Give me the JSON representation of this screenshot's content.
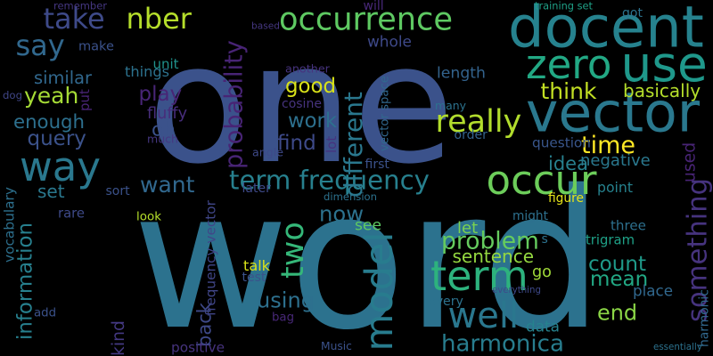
{
  "background": "#000000",
  "palette": {
    "dark_purple": "#46327e",
    "blue": "#365c8d",
    "teal": "#277f8e",
    "green_teal": "#1fa187",
    "green": "#4ac16d",
    "yellow_green": "#a0da39"
  },
  "words": [
    {
      "id": "one",
      "text": "one",
      "color": "#3b528b",
      "vertical": false
    },
    {
      "id": "word",
      "text": "word",
      "color": "#2c728e",
      "vertical": false
    },
    {
      "id": "docent",
      "text": "docent",
      "color": "#26828e",
      "vertical": false
    },
    {
      "id": "vector",
      "text": "vector",
      "color": "#2a788e",
      "vertical": false
    },
    {
      "id": "use",
      "text": "use",
      "color": "#1f988b",
      "vertical": false
    },
    {
      "id": "zero",
      "text": "zero",
      "color": "#22a884",
      "vertical": false
    },
    {
      "id": "occurrence",
      "text": "occurrence",
      "color": "#5ec962",
      "vertical": false
    },
    {
      "id": "take",
      "text": "take",
      "color": "#3e4a89",
      "vertical": false
    },
    {
      "id": "nber",
      "text": "nber",
      "color": "#b5de2b",
      "vertical": false
    },
    {
      "id": "say",
      "text": "say",
      "color": "#31688e",
      "vertical": false
    },
    {
      "id": "way",
      "text": "way",
      "color": "#2a788e",
      "vertical": false
    },
    {
      "id": "occur",
      "text": "occur",
      "color": "#6ccd5a",
      "vertical": false
    },
    {
      "id": "two",
      "text": "two",
      "color": "#35b779",
      "vertical": true
    },
    {
      "id": "term-frequency",
      "text": "term frequency",
      "color": "#27808e",
      "vertical": false
    },
    {
      "id": "term",
      "text": "term",
      "color": "#2db27d",
      "vertical": false
    },
    {
      "id": "model",
      "text": "model",
      "color": "#287c8e",
      "vertical": true
    },
    {
      "id": "well",
      "text": "well",
      "color": "#2a778e",
      "vertical": false
    },
    {
      "id": "harmonica",
      "text": "harmonica",
      "color": "#287d8e",
      "vertical": false
    },
    {
      "id": "probability",
      "text": "probability",
      "color": "#482475",
      "vertical": true
    },
    {
      "id": "yeah",
      "text": "yeah",
      "color": "#a5db36",
      "vertical": false
    },
    {
      "id": "good",
      "text": "good",
      "color": "#d8e219",
      "vertical": false
    },
    {
      "id": "really",
      "text": "really",
      "color": "#b2dd2d",
      "vertical": false
    },
    {
      "id": "time",
      "text": "time",
      "color": "#fde725",
      "vertical": false
    },
    {
      "id": "think",
      "text": "think",
      "color": "#c2df23",
      "vertical": false
    },
    {
      "id": "want",
      "text": "want",
      "color": "#31688e",
      "vertical": false
    },
    {
      "id": "problem",
      "text": "problem",
      "color": "#65cb5e",
      "vertical": false
    },
    {
      "id": "sentence",
      "text": "sentence",
      "color": "#95d840",
      "vertical": false
    },
    {
      "id": "count",
      "text": "count",
      "color": "#1f9a8a",
      "vertical": false
    },
    {
      "id": "mean",
      "text": "mean",
      "color": "#22a884",
      "vertical": false
    },
    {
      "id": "end",
      "text": "end",
      "color": "#8bd646",
      "vertical": false
    },
    {
      "id": "something",
      "text": "something",
      "color": "#46337e",
      "vertical": true
    },
    {
      "id": "information",
      "text": "information",
      "color": "#27808e",
      "vertical": true
    },
    {
      "id": "kind",
      "text": "kind",
      "color": "#443983",
      "vertical": true
    },
    {
      "id": "back",
      "text": "back",
      "color": "#3e4989",
      "vertical": true
    },
    {
      "id": "using",
      "text": "using",
      "color": "#2d708e",
      "vertical": false
    },
    {
      "id": "now",
      "text": "now",
      "color": "#2c728e",
      "vertical": false
    },
    {
      "id": "see",
      "text": "see",
      "color": "#5ec962",
      "vertical": false
    },
    {
      "id": "similar",
      "text": "similar",
      "color": "#31688e",
      "vertical": false
    },
    {
      "id": "enough",
      "text": "enough",
      "color": "#2d708e",
      "vertical": false
    },
    {
      "id": "query",
      "text": "query",
      "color": "#3b528b",
      "vertical": false
    },
    {
      "id": "set",
      "text": "set",
      "color": "#2a788e",
      "vertical": false
    },
    {
      "id": "play",
      "text": "play",
      "color": "#482576",
      "vertical": false
    },
    {
      "id": "oh",
      "text": "oh",
      "color": "#3b528b",
      "vertical": false
    },
    {
      "id": "work",
      "text": "work",
      "color": "#2d708e",
      "vertical": false
    },
    {
      "id": "find",
      "text": "find",
      "color": "#3e4a89",
      "vertical": false
    },
    {
      "id": "different",
      "text": "different",
      "color": "#2a788e",
      "vertical": true
    },
    {
      "id": "idea",
      "text": "idea",
      "color": "#27808e",
      "vertical": false
    },
    {
      "id": "used",
      "text": "used",
      "color": "#482475",
      "vertical": true
    },
    {
      "id": "basically",
      "text": "basically",
      "color": "#b5de2b",
      "vertical": false
    },
    {
      "id": "negative",
      "text": "negative",
      "color": "#2a788e",
      "vertical": false
    },
    {
      "id": "question",
      "text": "question",
      "color": "#39568c",
      "vertical": false
    },
    {
      "id": "whole",
      "text": "whole",
      "color": "#3e4989",
      "vertical": false
    },
    {
      "id": "length",
      "text": "length",
      "color": "#33638d",
      "vertical": false
    },
    {
      "id": "things",
      "text": "things",
      "color": "#2c728e",
      "vertical": false
    },
    {
      "id": "make",
      "text": "make",
      "color": "#3b528b",
      "vertical": false
    },
    {
      "id": "unit",
      "text": "unit",
      "color": "#20928c",
      "vertical": false
    },
    {
      "id": "put",
      "text": "put",
      "color": "#482475",
      "vertical": true
    },
    {
      "id": "fluffy",
      "text": "fluffy",
      "color": "#472d7b",
      "vertical": false
    },
    {
      "id": "much",
      "text": "much",
      "color": "#453781",
      "vertical": false
    },
    {
      "id": "cosine",
      "text": "cosine",
      "color": "#46337e",
      "vertical": false
    },
    {
      "id": "lot",
      "text": "lot",
      "color": "#46337e",
      "vertical": true
    },
    {
      "id": "angle",
      "text": "angle",
      "color": "#3e4989",
      "vertical": false
    },
    {
      "id": "another",
      "text": "another",
      "color": "#46337e",
      "vertical": false
    },
    {
      "id": "many",
      "text": "many",
      "color": "#2c728e",
      "vertical": false
    },
    {
      "id": "order",
      "text": "order",
      "color": "#33638d",
      "vertical": false
    },
    {
      "id": "first",
      "text": "first",
      "color": "#3b528b",
      "vertical": false
    },
    {
      "id": "vector-space",
      "text": "vector space",
      "color": "#31688e",
      "vertical": true
    },
    {
      "id": "training-set",
      "text": "training set",
      "color": "#1fa187",
      "vertical": false
    },
    {
      "id": "got",
      "text": "got",
      "color": "#2c728e",
      "vertical": false
    },
    {
      "id": "based",
      "text": "based",
      "color": "#453781",
      "vertical": false
    },
    {
      "id": "will",
      "text": "will",
      "color": "#482878",
      "vertical": false
    },
    {
      "id": "remember",
      "text": "remember",
      "color": "#453781",
      "vertical": false
    },
    {
      "id": "dog",
      "text": "dog",
      "color": "#404688",
      "vertical": false
    },
    {
      "id": "vocabulary",
      "text": "vocabulary",
      "color": "#2d708e",
      "vertical": true
    },
    {
      "id": "rare",
      "text": "rare",
      "color": "#3e4a89",
      "vertical": false
    },
    {
      "id": "look",
      "text": "look",
      "color": "#b5de2b",
      "vertical": false
    },
    {
      "id": "frequency-vector",
      "text": "frequency vector",
      "color": "#404688",
      "vertical": true
    },
    {
      "id": "dimension",
      "text": "dimension",
      "color": "#2c728e",
      "vertical": false
    },
    {
      "id": "later",
      "text": "later",
      "color": "#3e4a89",
      "vertical": false
    },
    {
      "id": "sort",
      "text": "sort",
      "color": "#3b528b",
      "vertical": false
    },
    {
      "id": "let",
      "text": "let",
      "color": "#7ad151",
      "vertical": false
    },
    {
      "id": "might",
      "text": "might",
      "color": "#2d708e",
      "vertical": false
    },
    {
      "id": "figure",
      "text": "figure",
      "color": "#e5e419",
      "vertical": false
    },
    {
      "id": "point",
      "text": "point",
      "color": "#26828e",
      "vertical": false
    },
    {
      "id": "three",
      "text": "three",
      "color": "#2d708e",
      "vertical": false
    },
    {
      "id": "trigram",
      "text": "trigram",
      "color": "#1fa187",
      "vertical": false
    },
    {
      "id": "s",
      "text": "s",
      "color": "#2c728e",
      "vertical": false
    },
    {
      "id": "go",
      "text": "go",
      "color": "#a0da39",
      "vertical": false
    },
    {
      "id": "place",
      "text": "place",
      "color": "#31688e",
      "vertical": false
    },
    {
      "id": "talk",
      "text": "talk",
      "color": "#d8e219",
      "vertical": false
    },
    {
      "id": "test",
      "text": "test",
      "color": "#3b528b",
      "vertical": false
    },
    {
      "id": "bag",
      "text": "bag",
      "color": "#482878",
      "vertical": false
    },
    {
      "id": "every",
      "text": "every",
      "color": "#2c728e",
      "vertical": false
    },
    {
      "id": "everything",
      "text": "everything",
      "color": "#3e4989",
      "vertical": false
    },
    {
      "id": "data",
      "text": "data",
      "color": "#26828e",
      "vertical": false
    },
    {
      "id": "positive",
      "text": "positive",
      "color": "#46337e",
      "vertical": false
    },
    {
      "id": "music",
      "text": "Music",
      "color": "#3b528b",
      "vertical": false
    },
    {
      "id": "add",
      "text": "add",
      "color": "#3b528b",
      "vertical": false
    },
    {
      "id": "harmonic",
      "text": "harmonic",
      "color": "#31688e",
      "vertical": true
    },
    {
      "id": "essentially",
      "text": "essentially",
      "color": "#2c728e",
      "vertical": false
    }
  ]
}
